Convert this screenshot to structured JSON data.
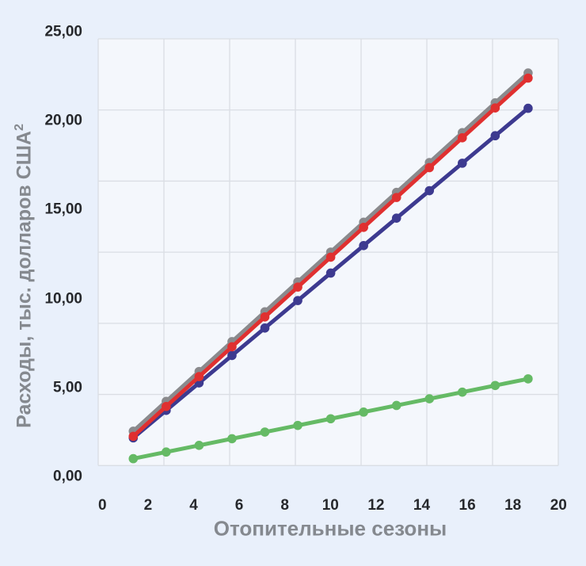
{
  "chart_data": {
    "type": "line",
    "title": "",
    "x_axis": {
      "title": "Отопительные сезоны",
      "ticks": [
        "0",
        "2",
        "4",
        "6",
        "8",
        "10",
        "12",
        "14",
        "16",
        "18",
        "20"
      ],
      "range": [
        0,
        20
      ]
    },
    "y_axis": {
      "title": "Расходы, тыс. долларов США",
      "title_superscript": "2",
      "ticks": [
        "0,00",
        "5,00",
        "10,00",
        "15,00",
        "20,00",
        "25,00"
      ],
      "range": [
        0,
        25
      ]
    },
    "grid": true,
    "legend": false,
    "x": [
      1.4,
      2.8,
      4.2,
      5.6,
      7.0,
      8.4,
      9.8,
      11.2,
      12.6,
      14.0,
      15.4,
      16.8,
      18.2
    ],
    "series": [
      {
        "name": "gray",
        "color": "#8a8a8d",
        "values": [
          2.0,
          3.75,
          5.5,
          7.25,
          9.0,
          10.75,
          12.5,
          14.25,
          16.0,
          17.75,
          19.5,
          21.25,
          23.0
        ]
      },
      {
        "name": "navy",
        "color": "#3d3a90",
        "values": [
          1.61,
          3.22,
          4.83,
          6.44,
          8.05,
          9.66,
          11.27,
          12.88,
          14.49,
          16.1,
          17.71,
          19.32,
          20.93
        ]
      },
      {
        "name": "red",
        "color": "#e03030",
        "values": [
          1.7,
          3.45,
          5.2,
          6.95,
          8.7,
          10.45,
          12.2,
          13.95,
          15.7,
          17.45,
          19.2,
          20.95,
          22.7
        ]
      },
      {
        "name": "green",
        "color": "#65ba65",
        "values": [
          0.39,
          0.78,
          1.17,
          1.56,
          1.95,
          2.34,
          2.73,
          3.12,
          3.51,
          3.9,
          4.29,
          4.68,
          5.07
        ]
      }
    ],
    "colors": {
      "page_background": "#e9f0fb",
      "plot_background": "#f4f7fc",
      "gridline": "#dadee4",
      "tick_text": "#26282c",
      "axis_title_text": "#85898f"
    }
  }
}
